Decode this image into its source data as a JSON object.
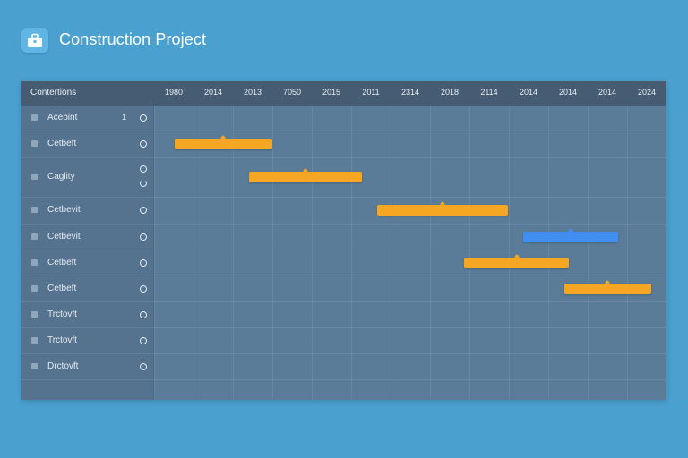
{
  "app": {
    "title": "Construction Project",
    "icon": "briefcase-icon"
  },
  "chart": {
    "header_label": "Contertions",
    "years": [
      "1980",
      "2014",
      "2013",
      "7050",
      "2015",
      "2011",
      "2314",
      "2018",
      "2114",
      "2014",
      "2014",
      "2014",
      "2024"
    ],
    "tasks": [
      {
        "label": "Acebint",
        "count": "1"
      },
      {
        "label": "Cetbeft",
        "count": ""
      },
      {
        "label": "Caglity",
        "count": ""
      },
      {
        "label": "Cetbevit",
        "count": ""
      },
      {
        "label": "Cetbevit",
        "count": ""
      },
      {
        "label": "Cetbeft",
        "count": ""
      },
      {
        "label": "Cetbeft",
        "count": ""
      },
      {
        "label": "Trctovft",
        "count": ""
      },
      {
        "label": "Trctovft",
        "count": ""
      },
      {
        "label": "Drctovft",
        "count": ""
      }
    ],
    "colors": {
      "orange": "#f5a623",
      "blue": "#3f8ef0"
    },
    "bars": [
      {
        "task_index": 1,
        "start": 0.04,
        "end": 0.23,
        "color": "orange"
      },
      {
        "task_index": 2,
        "start": 0.185,
        "end": 0.405,
        "color": "orange"
      },
      {
        "task_index": 3,
        "start": 0.435,
        "end": 0.69,
        "color": "orange"
      },
      {
        "task_index": 4,
        "start": 0.72,
        "end": 0.905,
        "color": "blue"
      },
      {
        "task_index": 5,
        "start": 0.605,
        "end": 0.81,
        "color": "orange"
      },
      {
        "task_index": 6,
        "start": 0.8,
        "end": 0.97,
        "color": "orange"
      }
    ]
  }
}
